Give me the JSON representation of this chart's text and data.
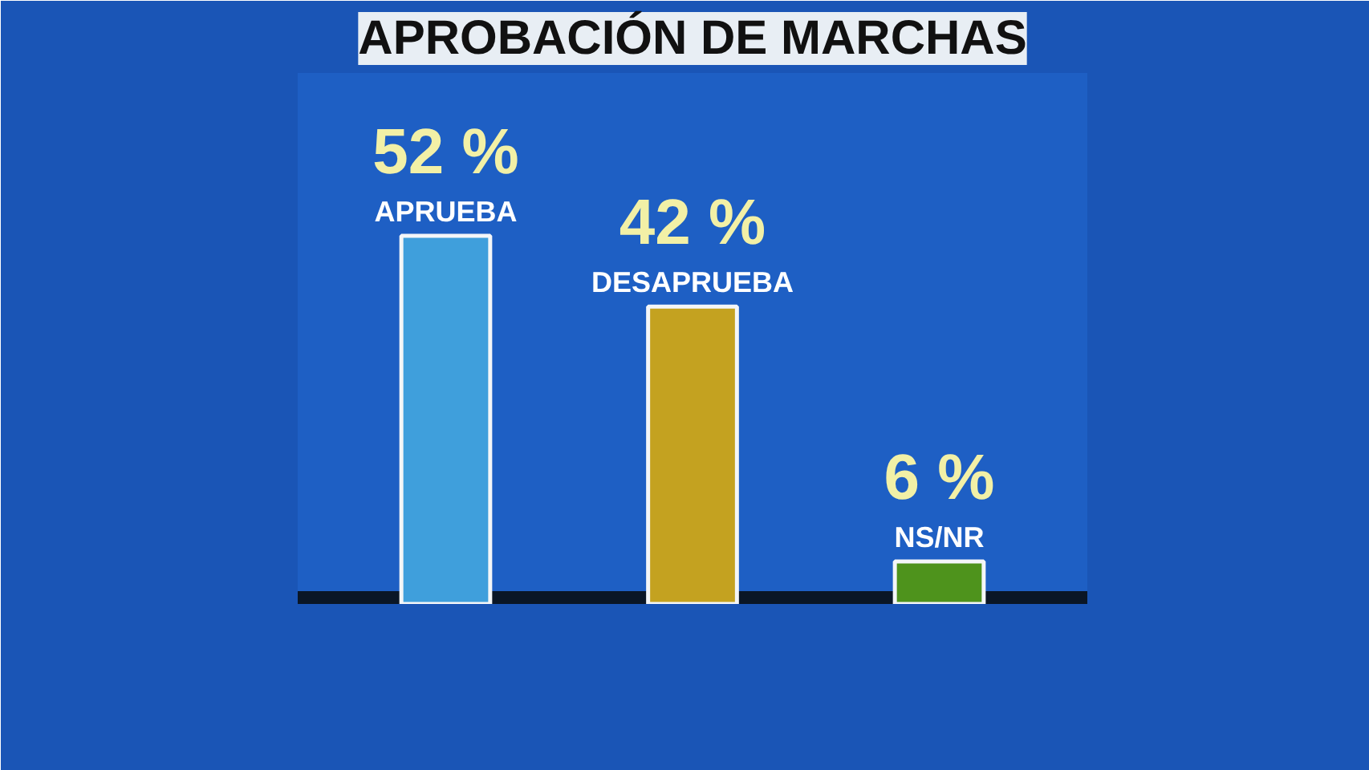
{
  "chart_data": {
    "type": "bar",
    "title": "APROBACIÓN DE MARCHAS",
    "categories": [
      "APRUEBA",
      "DESAPRUEBA",
      "NS/NR"
    ],
    "values": [
      52,
      42,
      6
    ],
    "colors": [
      "#3f9fdc",
      "#c4a220",
      "#4e931c"
    ],
    "value_labels": [
      "52 %",
      "42 %",
      "6 %"
    ],
    "ylim": [
      0,
      75
    ],
    "tick_labels": false
  }
}
